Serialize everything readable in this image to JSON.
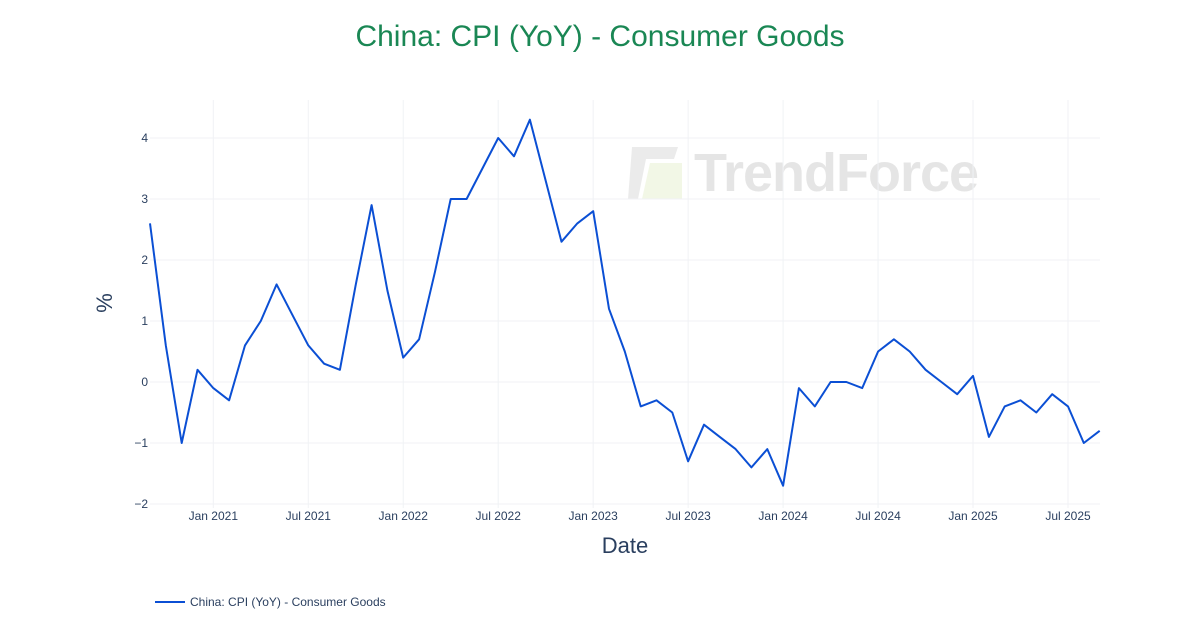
{
  "chart_data": {
    "type": "line",
    "title": "China: CPI (YoY) - Consumer Goods",
    "xlabel": "Date",
    "ylabel": "%",
    "ylim": [
      -2,
      4.6
    ],
    "yticks": [
      -2,
      -1,
      0,
      1,
      2,
      3,
      4
    ],
    "ytick_labels": [
      "−2",
      "−1",
      "0",
      "1",
      "2",
      "3",
      "4"
    ],
    "xticks": [
      "Jan 2021",
      "Jul 2021",
      "Jan 2022",
      "Jul 2022",
      "Jan 2023",
      "Jul 2023",
      "Jan 2024",
      "Jul 2024",
      "Jan 2025",
      "Jul 2025"
    ],
    "grid": true,
    "legend_position": "bottom-left",
    "series": [
      {
        "name": "China: CPI (YoY) - Consumer Goods",
        "color": "#0b4fd4",
        "x": [
          "2020-09",
          "2020-10",
          "2020-11",
          "2020-12",
          "2021-01",
          "2021-02",
          "2021-03",
          "2021-04",
          "2021-05",
          "2021-06",
          "2021-07",
          "2021-08",
          "2021-09",
          "2021-10",
          "2021-11",
          "2021-12",
          "2022-01",
          "2022-02",
          "2022-03",
          "2022-04",
          "2022-05",
          "2022-06",
          "2022-07",
          "2022-08",
          "2022-09",
          "2022-10",
          "2022-11",
          "2022-12",
          "2023-01",
          "2023-02",
          "2023-03",
          "2023-04",
          "2023-05",
          "2023-06",
          "2023-07",
          "2023-08",
          "2023-09",
          "2023-10",
          "2023-11",
          "2023-12",
          "2024-01",
          "2024-02",
          "2024-03",
          "2024-04",
          "2024-05",
          "2024-06",
          "2024-07",
          "2024-08",
          "2024-09",
          "2024-10",
          "2024-11",
          "2024-12",
          "2025-01",
          "2025-02",
          "2025-03",
          "2025-04",
          "2025-05",
          "2025-06",
          "2025-07",
          "2025-08",
          "2025-09"
        ],
        "values": [
          2.6,
          0.6,
          -1.0,
          0.2,
          -0.1,
          -0.3,
          0.6,
          1.0,
          1.6,
          1.1,
          0.6,
          0.3,
          0.2,
          1.6,
          2.9,
          1.5,
          0.4,
          0.7,
          1.8,
          3.0,
          3.0,
          3.5,
          4.0,
          3.7,
          4.3,
          3.3,
          2.3,
          2.6,
          2.8,
          1.2,
          0.5,
          -0.4,
          -0.3,
          -0.5,
          -1.3,
          -0.7,
          -0.9,
          -1.1,
          -1.4,
          -1.1,
          -1.7,
          -0.1,
          -0.4,
          0.0,
          0.0,
          -0.1,
          0.5,
          0.7,
          0.5,
          0.2,
          0.0,
          -0.2,
          0.1,
          -0.9,
          -0.4,
          -0.3,
          -0.5,
          -0.2,
          -0.4,
          -1.0,
          -0.8
        ]
      }
    ]
  },
  "watermark": {
    "text": "TrendForce"
  },
  "colors": {
    "title": "#1a8754",
    "line": "#0b4fd4",
    "grid": "#f0f2f5",
    "text": "#2a3f5f"
  }
}
